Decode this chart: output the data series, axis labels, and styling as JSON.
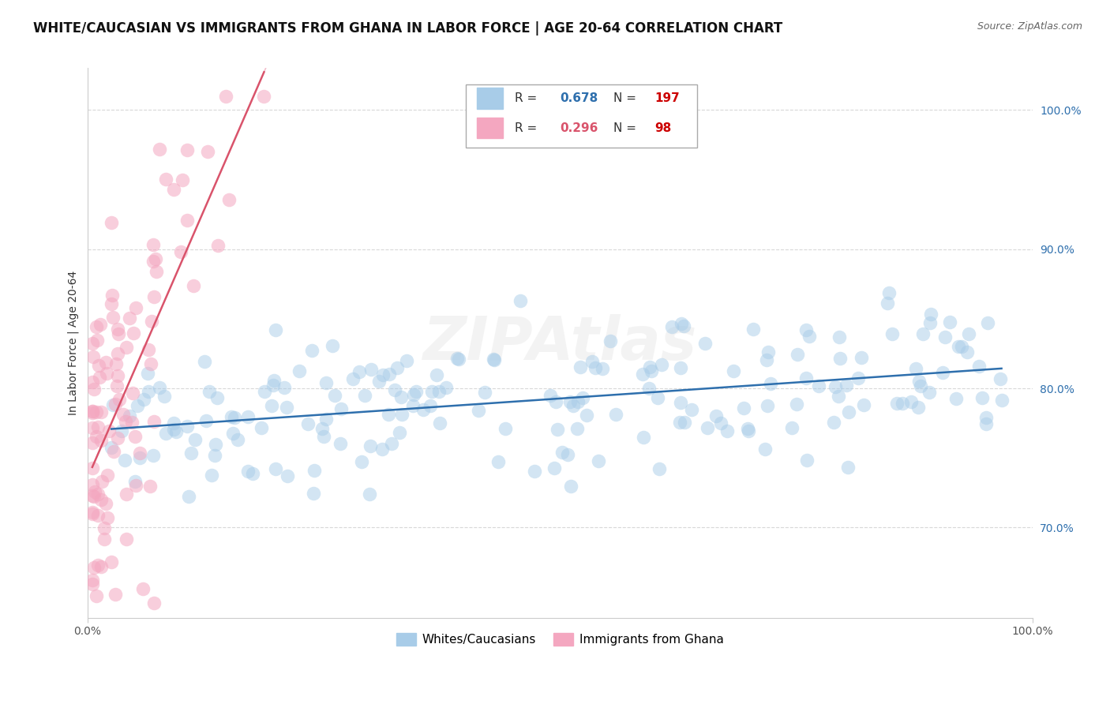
{
  "title": "WHITE/CAUCASIAN VS IMMIGRANTS FROM GHANA IN LABOR FORCE | AGE 20-64 CORRELATION CHART",
  "source": "Source: ZipAtlas.com",
  "ylabel": "In Labor Force | Age 20-64",
  "xlim": [
    0.0,
    1.0
  ],
  "ylim": [
    0.635,
    1.03
  ],
  "yticks": [
    0.7,
    0.8,
    0.9,
    1.0
  ],
  "ytick_labels": [
    "70.0%",
    "80.0%",
    "90.0%",
    "100.0%"
  ],
  "xtick_labels": [
    "0.0%",
    "100.0%"
  ],
  "blue_R": 0.678,
  "blue_N": 197,
  "pink_R": 0.296,
  "pink_N": 98,
  "blue_dot_color": "#a8cce8",
  "pink_dot_color": "#f4a7c0",
  "blue_line_color": "#2e6fad",
  "pink_line_color": "#d9536b",
  "pink_dash_color": "#f0b0c0",
  "grid_color": "#d8d8d8",
  "watermark": "ZIPAtlas",
  "title_fontsize": 12,
  "source_fontsize": 9,
  "axis_label_fontsize": 10,
  "tick_fontsize": 10,
  "legend_fontsize": 11,
  "blue_legend_color": "#2e6fad",
  "pink_legend_color": "#d9536b",
  "red_color": "#cc0000",
  "legend_label1": "Whites/Caucasians",
  "legend_label2": "Immigrants from Ghana"
}
